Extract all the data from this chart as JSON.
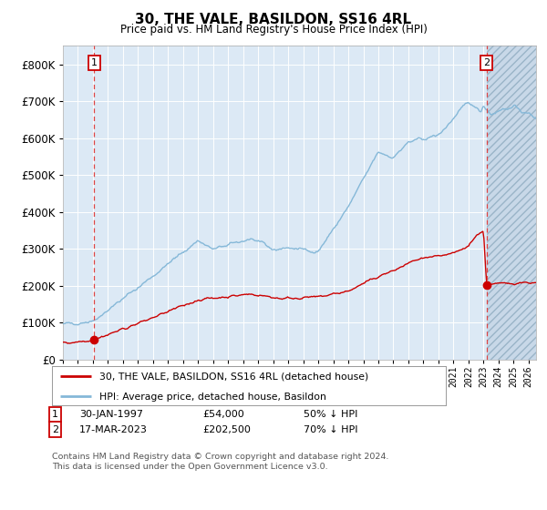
{
  "title": "30, THE VALE, BASILDON, SS16 4RL",
  "subtitle": "Price paid vs. HM Land Registry's House Price Index (HPI)",
  "bg_color": "#dce9f5",
  "grid_color": "#c8d8e8",
  "hpi_color": "#85b8d8",
  "price_color": "#cc0000",
  "dashed_color": "#dd4444",
  "ylim": [
    0,
    850000
  ],
  "yticks": [
    0,
    100000,
    200000,
    300000,
    400000,
    500000,
    600000,
    700000,
    800000
  ],
  "xmin": 1995.0,
  "xmax": 2026.5,
  "sale1_year": 1997.08,
  "sale1_price": 54000,
  "sale2_year": 2023.21,
  "sale2_price": 202500,
  "legend_line1": "30, THE VALE, BASILDON, SS16 4RL (detached house)",
  "legend_line2": "HPI: Average price, detached house, Basildon",
  "table_row1_num": "1",
  "table_row1_date": "30-JAN-1997",
  "table_row1_price": "£54,000",
  "table_row1_hpi": "50% ↓ HPI",
  "table_row2_num": "2",
  "table_row2_date": "17-MAR-2023",
  "table_row2_price": "£202,500",
  "table_row2_hpi": "70% ↓ HPI",
  "footnote": "Contains HM Land Registry data © Crown copyright and database right 2024.\nThis data is licensed under the Open Government Licence v3.0.",
  "hatch_start_year": 2023.21,
  "hatch_end_year": 2026.5
}
